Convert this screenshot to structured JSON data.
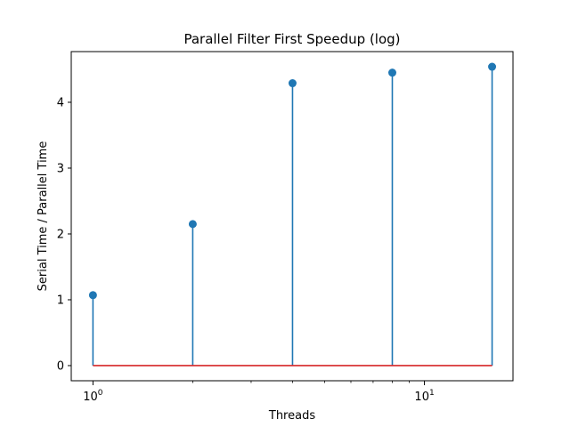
{
  "chart_data": {
    "type": "stem",
    "title": "Parallel Filter First Speedup (log)",
    "xlabel": "Threads",
    "ylabel": "Serial Time / Parallel Time",
    "xscale": "log",
    "x": [
      1,
      2,
      4,
      8,
      16
    ],
    "y": [
      1.07,
      2.15,
      4.29,
      4.45,
      4.54
    ],
    "xlim": [
      0.86,
      18.5
    ],
    "ylim": [
      -0.23,
      4.77
    ],
    "yticks": [
      0,
      1,
      2,
      3,
      4
    ],
    "ytick_labels": [
      "0",
      "1",
      "2",
      "3",
      "4"
    ],
    "xticks_major": [
      {
        "value": 1,
        "base": "10",
        "exp": "0"
      },
      {
        "value": 10,
        "base": "10",
        "exp": "1"
      }
    ],
    "xticks_minor": [
      2,
      3,
      4,
      5,
      6,
      7,
      8,
      9
    ],
    "grid": false,
    "legend": "none",
    "colors": {
      "stem": "#1f77b4",
      "marker": "#1f77b4",
      "baseline": "#d62728"
    }
  }
}
